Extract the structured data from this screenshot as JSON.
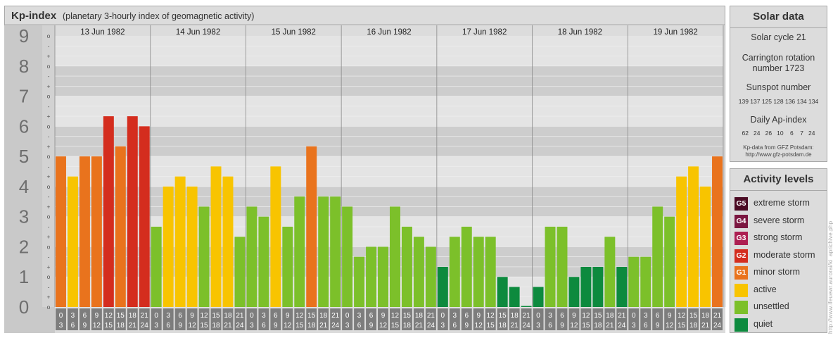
{
  "header": {
    "title": "Kp-index",
    "subtitle": "(planetary 3-hourly index of geomagnetic activity)"
  },
  "chart_data": {
    "type": "bar",
    "title": "Kp-index",
    "subtitle": "(planetary 3-hourly index of geomagnetic activity)",
    "ylim": [
      0,
      9
    ],
    "y_ticks": [
      "0",
      "1",
      "2",
      "3",
      "4",
      "5",
      "6",
      "7",
      "8",
      "9"
    ],
    "minor_tick_labels": [
      "o",
      "+",
      "-"
    ],
    "days": [
      "13 Jun 1982",
      "14 Jun 1982",
      "15 Jun 1982",
      "16 Jun 1982",
      "17 Jun 1982",
      "18 Jun 1982",
      "19 Jun 1982"
    ],
    "interval_starts": [
      "0",
      "3",
      "6",
      "9",
      "12",
      "15",
      "18",
      "21"
    ],
    "interval_ends": [
      "3",
      "6",
      "9",
      "12",
      "15",
      "18",
      "21",
      "24"
    ],
    "values": [
      [
        5.0,
        4.333,
        5.0,
        5.0,
        6.333,
        5.333,
        6.333,
        6.0
      ],
      [
        2.667,
        4.0,
        4.333,
        4.0,
        3.333,
        4.667,
        4.333,
        2.333
      ],
      [
        3.333,
        3.0,
        4.667,
        2.667,
        3.667,
        5.333,
        3.667,
        3.667
      ],
      [
        3.333,
        1.667,
        2.0,
        2.0,
        3.333,
        2.667,
        2.333,
        2.0
      ],
      [
        1.333,
        2.333,
        2.667,
        2.333,
        2.333,
        1.0,
        0.667,
        0.0
      ],
      [
        0.667,
        2.667,
        2.667,
        1.0,
        1.333,
        1.333,
        2.333,
        1.333
      ],
      [
        1.667,
        1.667,
        3.333,
        3.0,
        4.333,
        4.667,
        4.0,
        5.0
      ]
    ],
    "colors": {
      "quiet": "#0d8a3e",
      "unsettled": "#7cc02a",
      "active": "#f8c400",
      "minor": "#e9731d",
      "moderate": "#d42d1e"
    }
  },
  "solar": {
    "title": "Solar data",
    "cycle": "Solar cycle 21",
    "carrington_line1": "Carrington rotation",
    "carrington_line2": "number 1723",
    "sunspot_label": "Sunspot number",
    "sunspot_values": "139 137 125 128 136 134 134",
    "ap_label": "Daily Ap-index",
    "ap_values": "62   24   26   10    6    7   24",
    "source_line1": "Kp-data from GFZ Potsdam:",
    "source_line2": "http://www.gfz-potsdam.de"
  },
  "levels": {
    "title": "Activity levels",
    "items": [
      {
        "badge": "G5",
        "label": "extreme storm",
        "color": "#4a0a22"
      },
      {
        "badge": "G4",
        "label": "severe storm",
        "color": "#7b1640"
      },
      {
        "badge": "G3",
        "label": "strong storm",
        "color": "#ad1f52"
      },
      {
        "badge": "G2",
        "label": "moderate storm",
        "color": "#d42d1e"
      },
      {
        "badge": "G1",
        "label": "minor storm",
        "color": "#e9731d"
      },
      {
        "badge": "",
        "label": "active",
        "color": "#f8c400"
      },
      {
        "badge": "",
        "label": "unsettled",
        "color": "#7cc02a"
      },
      {
        "badge": "",
        "label": "quiet",
        "color": "#0d8a3e"
      }
    ]
  },
  "credit": "http://www.ifeuewr.aurorai/ki_aprichive.php"
}
